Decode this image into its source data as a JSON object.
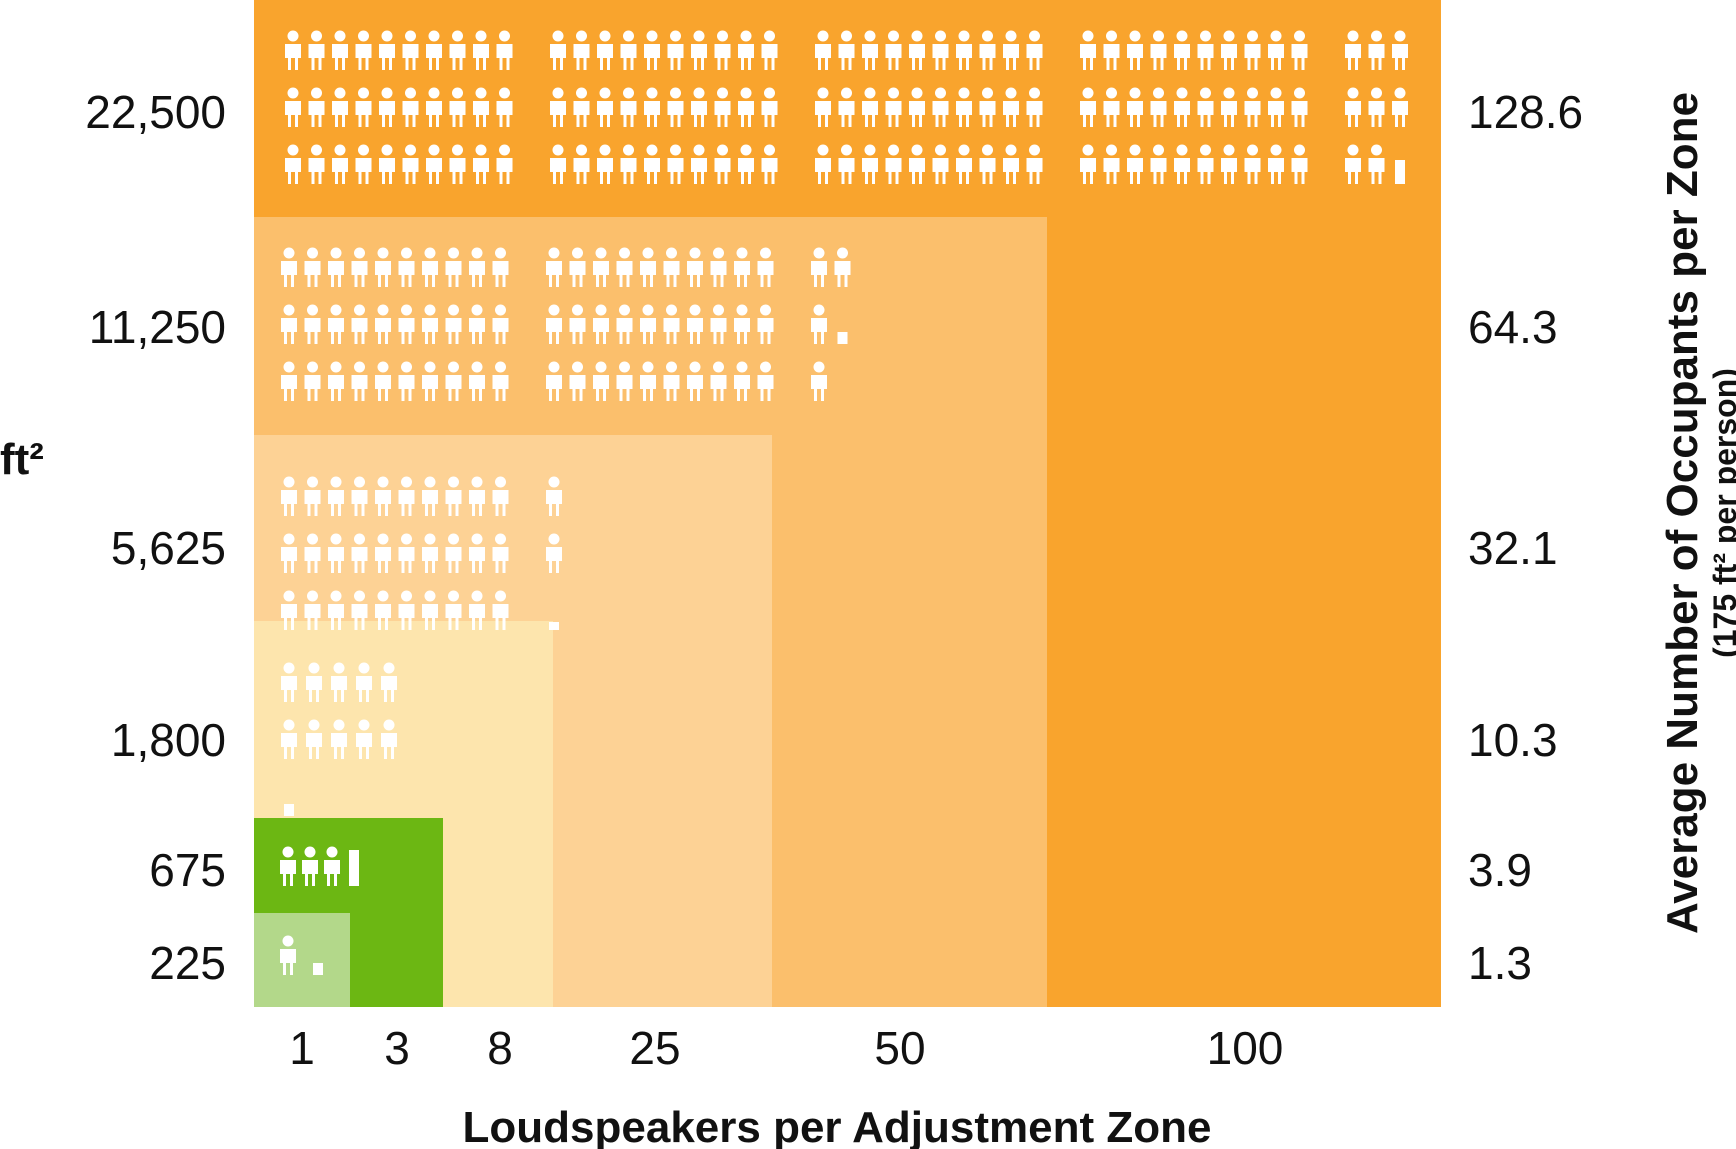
{
  "chart_data": {
    "type": "area",
    "title": "",
    "xlabel": "Loudspeakers per Adjustment Zone",
    "ylabel": "ft²",
    "y2label": "Average Number of Occupants per Zone",
    "y2label_sub": "(175 ft² per person)",
    "loudspeakers": [
      1,
      3,
      8,
      25,
      50,
      100
    ],
    "area_ft2": [
      225,
      675,
      1800,
      5625,
      11250,
      22500
    ],
    "occupants": [
      1.3,
      3.9,
      10.3,
      32.1,
      64.3,
      128.6
    ],
    "x_ticks": [
      "1",
      "3",
      "8",
      "25",
      "50",
      "100"
    ],
    "y_ticks": [
      "225",
      "675",
      "1,800",
      "5,625",
      "11,250",
      "22,500"
    ],
    "y2_ticks": [
      "1.3",
      "3.9",
      "10.3",
      "32.1",
      "64.3",
      "128.6"
    ],
    "zone_colors": [
      "#b3d88a",
      "#6cb713",
      "#fde5ad",
      "#fdd295",
      "#fbbf6c",
      "#f9a42d"
    ],
    "icon_color": "#ffffff",
    "icon": "person-icon"
  }
}
